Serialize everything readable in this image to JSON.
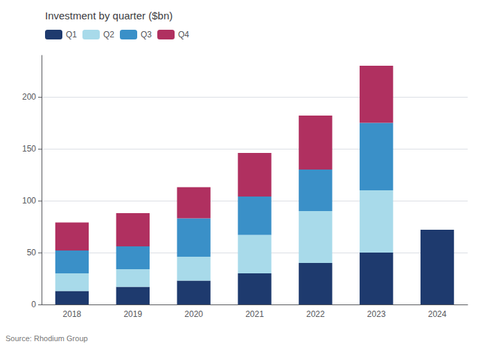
{
  "chart_data": {
    "type": "bar",
    "stacked": true,
    "title": "Investment by quarter ($bn)",
    "source": "Source: Rhodium Group",
    "categories": [
      "2018",
      "2019",
      "2020",
      "2021",
      "2022",
      "2023",
      "2024"
    ],
    "series": [
      {
        "name": "Q1",
        "color": "#1e3a6e",
        "values": [
          13,
          17,
          23,
          30,
          40,
          50,
          72
        ]
      },
      {
        "name": "Q2",
        "color": "#a8daea",
        "values": [
          17,
          17,
          23,
          37,
          50,
          60,
          0
        ]
      },
      {
        "name": "Q3",
        "color": "#3a90c8",
        "values": [
          22,
          22,
          37,
          37,
          40,
          65,
          0
        ]
      },
      {
        "name": "Q4",
        "color": "#b03060",
        "values": [
          27,
          32,
          30,
          42,
          52,
          55,
          0
        ]
      }
    ],
    "ylim": [
      0,
      240
    ],
    "yticks": [
      0,
      50,
      100,
      150,
      200
    ],
    "grid": true,
    "legend": "upper left"
  }
}
